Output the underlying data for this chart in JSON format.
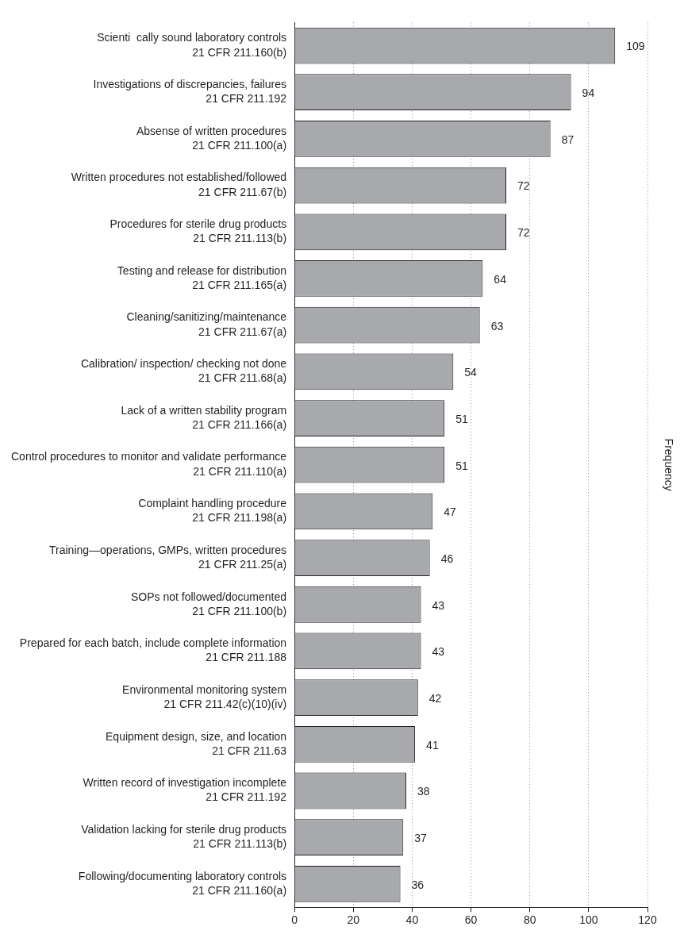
{
  "chart_data": {
    "type": "bar",
    "orientation": "horizontal",
    "y2label": "Frequency",
    "categories": [
      "Scienti  cally sound laboratory controls\n21 CFR 211.160(b)",
      "Investigations of discrepancies, failures\n21 CFR 211.192",
      "Absense of written procedures\n21 CFR 211.100(a)",
      "Written procedures not established/followed\n21 CFR 211.67(b)",
      "Procedures for sterile drug products\n21 CFR 211.113(b)",
      "Testing and release for distribution\n21 CFR 211.165(a)",
      "Cleaning/sanitizing/maintenance\n21 CFR 211.67(a)",
      "Calibration/ inspection/ checking not done\n21 CFR 211.68(a)",
      "Lack of a written stability program\n21 CFR 211.166(a)",
      "Control procedures to monitor and validate performance\n21 CFR 211.110(a)",
      "Complaint handling procedure\n21 CFR 211.198(a)",
      "Training—operations, GMPs, written procedures\n21 CFR 211.25(a)",
      "SOPs not followed/documented\n21 CFR 211.100(b)",
      "Prepared for each batch, include complete information\n21 CFR 211.188",
      "Environmental monitoring system\n21 CFR 211.42(c)(10)(iv)",
      "Equipment design, size, and location\n21 CFR 211.63",
      "Written record of investigation incomplete\n21 CFR 211.192",
      "Validation lacking for sterile drug products\n21 CFR 211.113(b)",
      "Following/documenting laboratory controls\n21 CFR 211.160(a)"
    ],
    "values": [
      109,
      94,
      87,
      72,
      72,
      64,
      63,
      54,
      51,
      51,
      47,
      46,
      43,
      43,
      42,
      41,
      38,
      37,
      36
    ],
    "color": "#a7a9ac",
    "xlim": [
      0,
      120
    ],
    "xticks": [
      0,
      20,
      40,
      60,
      80,
      100,
      120
    ],
    "grid": "x",
    "data_labels": true,
    "legend": false
  }
}
